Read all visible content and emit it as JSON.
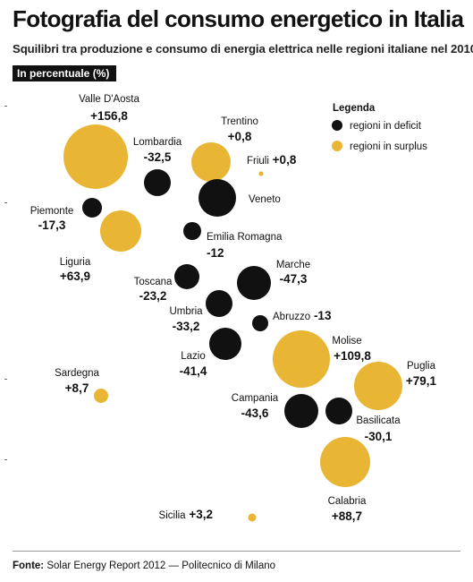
{
  "title": "Fotografia del consumo energetico in Italia",
  "subtitle": "Squilibri tra produzione e consumo di energia elettrica nelle regioni italiane nel 2010",
  "unit_label": "In percentuale (%)",
  "legend": {
    "title": "Legenda",
    "items": [
      {
        "label": "regioni in deficit",
        "color": "#111111"
      },
      {
        "label": "regioni in surplus",
        "color": "#E8B634"
      }
    ]
  },
  "colors": {
    "deficit": "#111111",
    "surplus": "#E8B634"
  },
  "chart_data": {
    "type": "scatter",
    "encoding": "bubble area proportional to value magnitude; color by sign",
    "points": [
      {
        "region": "Valle D'Aosta",
        "value": "+156,8",
        "v": 156.8
      },
      {
        "region": "Lombardia",
        "value": "-32,5",
        "v": -32.5
      },
      {
        "region": "Trentino",
        "value": "+0,8",
        "v": 0.8
      },
      {
        "region": "Friuli",
        "value": "+0,8",
        "v": 0.8
      },
      {
        "region": "Veneto",
        "value": "",
        "v": null
      },
      {
        "region": "Piemonte",
        "value": "-17,3",
        "v": -17.3
      },
      {
        "region": "Liguria",
        "value": "+63,9",
        "v": 63.9
      },
      {
        "region": "Emilia Romagna",
        "value": "-12",
        "v": -12
      },
      {
        "region": "Toscana",
        "value": "-23,2",
        "v": -23.2
      },
      {
        "region": "Marche",
        "value": "-47,3",
        "v": -47.3
      },
      {
        "region": "Umbria",
        "value": "-33,2",
        "v": -33.2
      },
      {
        "region": "Abruzzo",
        "value": "-13",
        "v": -13
      },
      {
        "region": "Lazio",
        "value": "-41,4",
        "v": -41.4
      },
      {
        "region": "Molise",
        "value": "+109,8",
        "v": 109.8
      },
      {
        "region": "Sardegna",
        "value": "+8,7",
        "v": 8.7
      },
      {
        "region": "Puglia",
        "value": "+79,1",
        "v": 79.1
      },
      {
        "region": "Campania",
        "value": "-43,6",
        "v": -43.6
      },
      {
        "region": "Basilicata",
        "value": "-30,1",
        "v": -30.1
      },
      {
        "region": "Calabria",
        "value": "+88,7",
        "v": 88.7
      },
      {
        "region": "Sicilia",
        "value": "+3,2",
        "v": 3.2
      }
    ]
  },
  "source": {
    "label": "Fonte:",
    "text": "Solar Energy Report 2012 — Politecnico di Milano"
  }
}
